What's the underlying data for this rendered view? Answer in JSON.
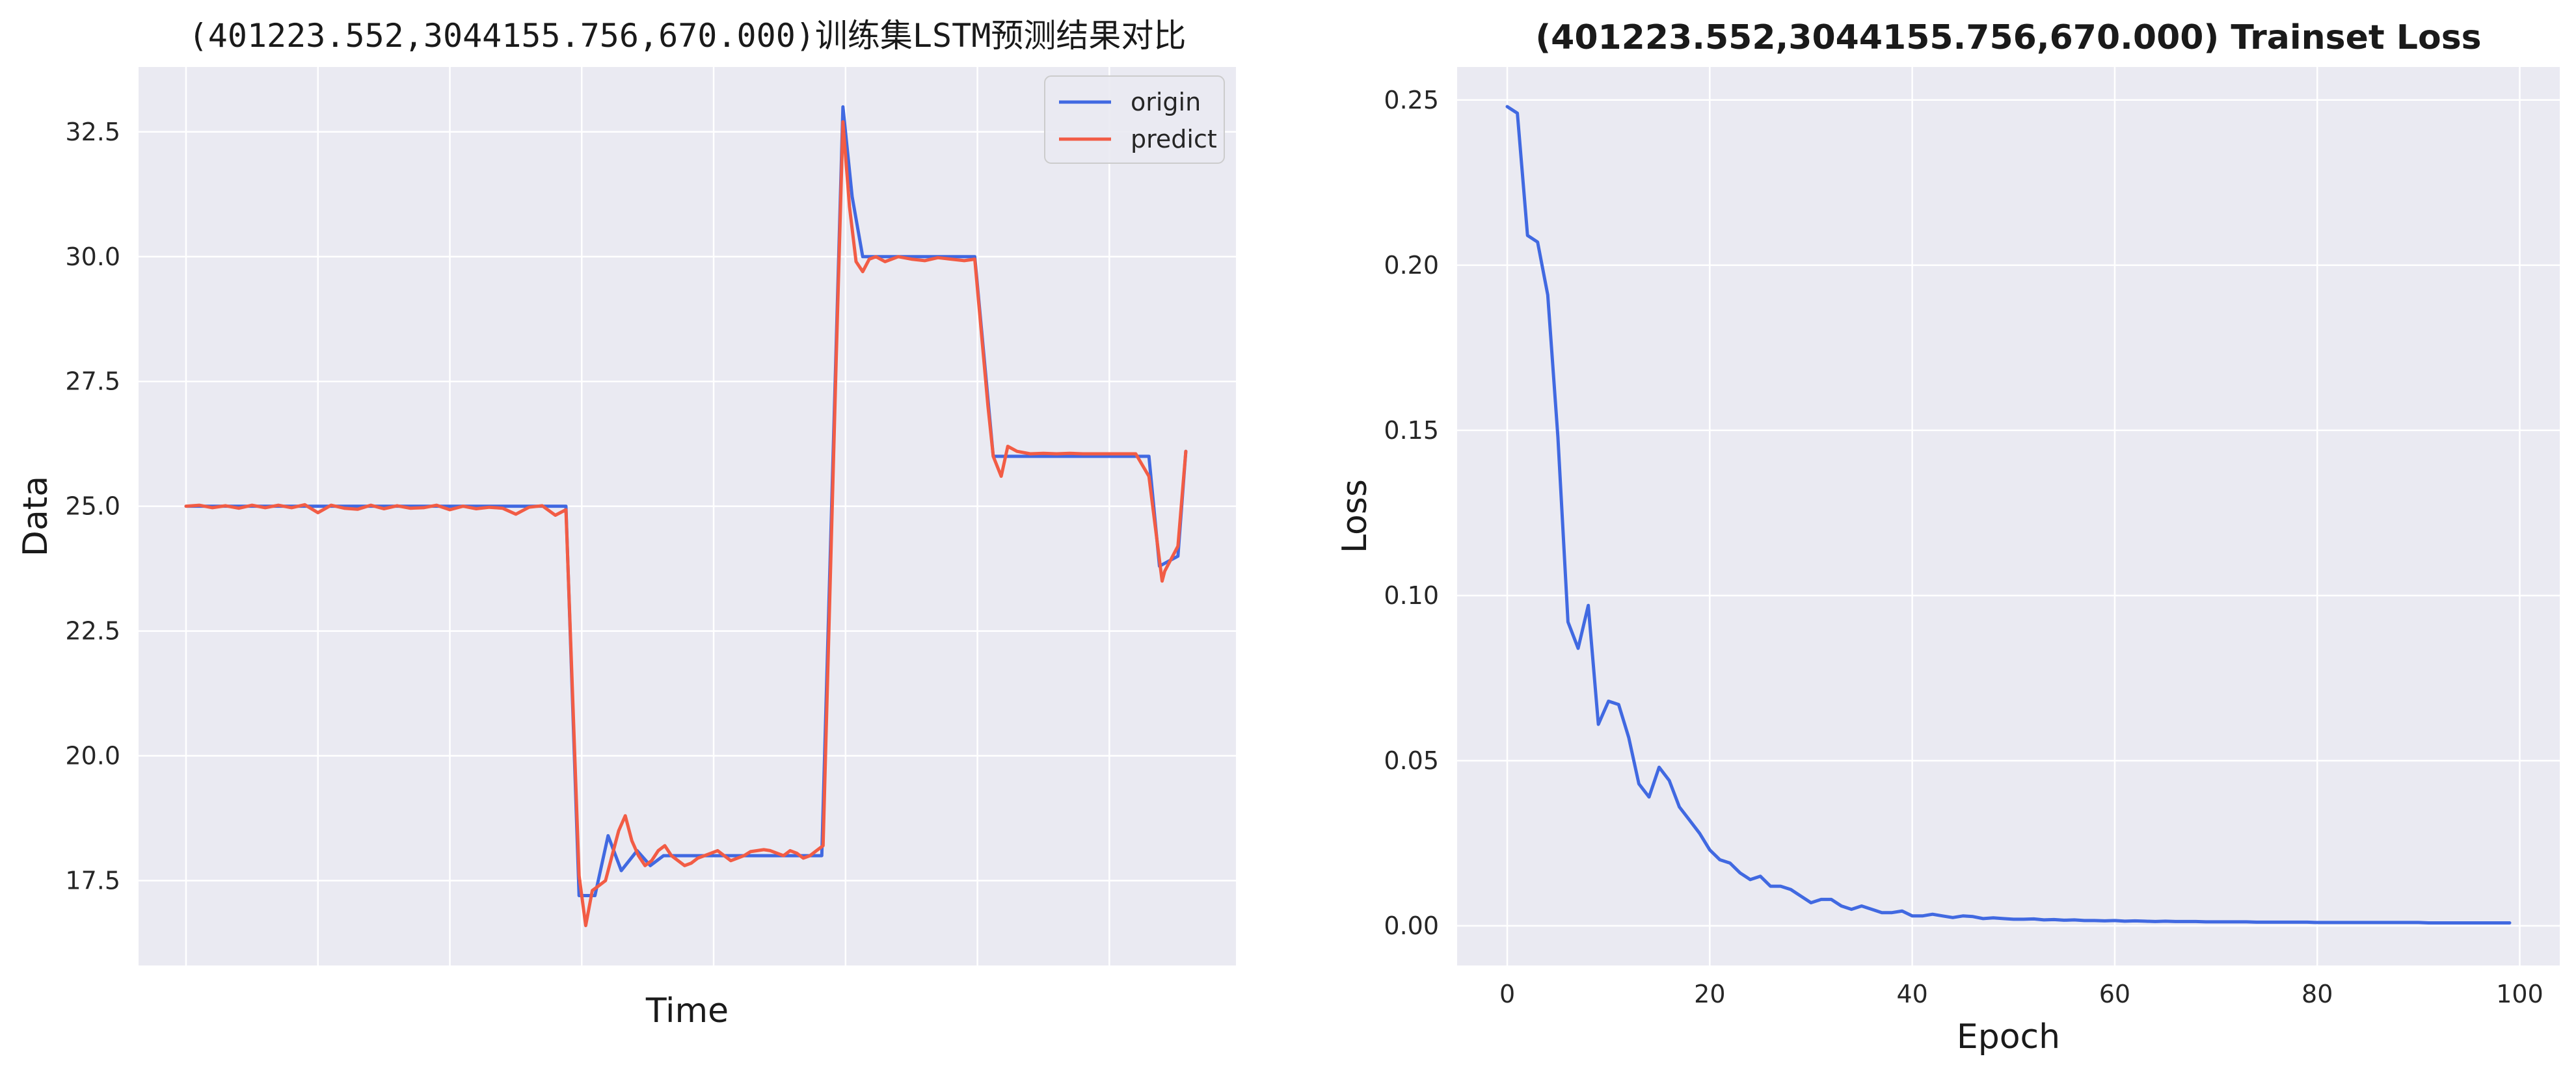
{
  "colors": {
    "origin": "#4169E1",
    "predict": "#F25C45",
    "plot_bg": "#EAEAF2",
    "grid": "#ffffff"
  },
  "chart_data": [
    {
      "type": "line",
      "title": "(401223.552,3044155.756,670.000)训练集LSTM预测结果对比",
      "xlabel": "Time",
      "ylabel": "Data",
      "x_tick_labels_shown": false,
      "xlim": [
        -3.6,
        79.6
      ],
      "ylim": [
        15.8,
        33.8
      ],
      "yticks": [
        17.5,
        20.0,
        22.5,
        25.0,
        27.5,
        30.0,
        32.5
      ],
      "ytick_labels": [
        "17.5",
        "20.0",
        "22.5",
        "25.0",
        "27.5",
        "30.0",
        "32.5"
      ],
      "xgrid": [
        0,
        10,
        20,
        30,
        40,
        50,
        60,
        70
      ],
      "grid": true,
      "legend": "top-right",
      "series": [
        {
          "name": "origin",
          "x": [
            0,
            28.8,
            29.8,
            31.0,
            32.0,
            33.0,
            34.2,
            35.2,
            36.2,
            37.2,
            38.3,
            48.2,
            49.8,
            50.5,
            51.3,
            59.8,
            61.2,
            73.0,
            73.8,
            75.2,
            75.8
          ],
          "y": [
            25.0,
            25.0,
            17.2,
            17.2,
            18.4,
            17.7,
            18.1,
            17.8,
            18.0,
            18.0,
            18.0,
            18.0,
            33.0,
            31.2,
            30.0,
            30.0,
            26.0,
            26.0,
            23.8,
            24.0,
            26.1
          ]
        },
        {
          "name": "predict",
          "x": [
            0,
            1,
            2,
            3,
            4,
            5,
            6,
            7,
            8,
            9,
            10,
            11,
            12,
            13,
            14,
            15,
            16,
            17,
            18,
            19,
            20,
            21,
            22,
            23,
            24,
            25,
            26,
            27,
            28,
            28.8,
            29.8,
            30.3,
            30.8,
            31.3,
            31.8,
            32.3,
            32.8,
            33.3,
            33.8,
            34.3,
            34.8,
            35.3,
            35.8,
            36.3,
            36.8,
            37.3,
            37.8,
            38.3,
            38.8,
            39.3,
            39.8,
            40.3,
            40.8,
            41.3,
            41.8,
            42.3,
            42.8,
            43.3,
            43.8,
            44.3,
            44.8,
            45.3,
            45.8,
            46.3,
            46.8,
            47.3,
            47.8,
            48.3,
            49.3,
            49.8,
            50.3,
            50.8,
            51.3,
            51.8,
            52.3,
            53,
            54,
            55,
            56,
            57,
            58,
            59,
            59.8,
            60.8,
            61.2,
            61.8,
            62.3,
            63,
            64,
            65,
            66,
            67,
            68,
            69,
            70,
            71,
            72,
            73,
            74,
            74.2,
            75.2,
            75.8
          ],
          "y": [
            25.0,
            25.02,
            24.97,
            25.01,
            24.96,
            25.02,
            24.97,
            25.02,
            24.97,
            25.03,
            24.87,
            25.02,
            24.96,
            24.94,
            25.02,
            24.95,
            25.01,
            24.96,
            24.97,
            25.02,
            24.93,
            25.0,
            24.95,
            24.98,
            24.96,
            24.84,
            24.98,
            25.01,
            24.82,
            24.93,
            17.6,
            16.6,
            17.3,
            17.4,
            17.5,
            18.0,
            18.5,
            18.8,
            18.3,
            18.0,
            17.8,
            17.9,
            18.1,
            18.2,
            18.0,
            17.9,
            17.8,
            17.85,
            17.95,
            18.0,
            18.05,
            18.1,
            18.0,
            17.9,
            17.95,
            18.0,
            18.08,
            18.1,
            18.12,
            18.1,
            18.05,
            18.0,
            18.1,
            18.05,
            17.95,
            18.0,
            18.1,
            18.2,
            28.0,
            32.7,
            31.0,
            29.9,
            29.7,
            29.95,
            30.0,
            29.9,
            30.0,
            29.95,
            29.92,
            29.98,
            29.95,
            29.92,
            29.95,
            27.0,
            26.0,
            25.6,
            26.2,
            26.1,
            26.05,
            26.06,
            26.05,
            26.06,
            26.05,
            26.05,
            26.05,
            26.05,
            26.05,
            25.6,
            23.5,
            23.7,
            24.2,
            26.1
          ]
        }
      ]
    },
    {
      "type": "line",
      "title": "(401223.552,3044155.756,670.000) Trainset Loss",
      "xlabel": "Epoch",
      "ylabel": "Loss",
      "xlim": [
        -4.95,
        103.95
      ],
      "ylim": [
        -0.012,
        0.26
      ],
      "xticks": [
        0,
        20,
        40,
        60,
        80,
        100
      ],
      "xtick_labels": [
        "0",
        "20",
        "40",
        "60",
        "80",
        "100"
      ],
      "yticks": [
        0.0,
        0.05,
        0.1,
        0.15,
        0.2,
        0.25
      ],
      "ytick_labels": [
        "0.00",
        "0.05",
        "0.10",
        "0.15",
        "0.20",
        "0.25"
      ],
      "grid": true,
      "series": [
        {
          "x": [
            0,
            1,
            2,
            3,
            4,
            5,
            6,
            7,
            8,
            9,
            10,
            11,
            12,
            13,
            14,
            15,
            16,
            17,
            18,
            19,
            20,
            21,
            22,
            23,
            24,
            25,
            26,
            27,
            28,
            29,
            30,
            31,
            32,
            33,
            34,
            35,
            36,
            37,
            38,
            39,
            40,
            41,
            42,
            43,
            44,
            45,
            46,
            47,
            48,
            49,
            50,
            51,
            52,
            53,
            54,
            55,
            56,
            57,
            58,
            59,
            60,
            61,
            62,
            63,
            64,
            65,
            66,
            67,
            68,
            69,
            70,
            71,
            72,
            73,
            74,
            75,
            76,
            77,
            78,
            79,
            80,
            81,
            82,
            83,
            84,
            85,
            86,
            87,
            88,
            89,
            90,
            91,
            92,
            93,
            94,
            95,
            96,
            97,
            98,
            99
          ],
          "y": [
            0.248,
            0.246,
            0.209,
            0.207,
            0.191,
            0.148,
            0.092,
            0.084,
            0.097,
            0.061,
            0.068,
            0.067,
            0.057,
            0.043,
            0.039,
            0.048,
            0.044,
            0.036,
            0.032,
            0.028,
            0.023,
            0.02,
            0.019,
            0.016,
            0.014,
            0.015,
            0.012,
            0.012,
            0.011,
            0.009,
            0.007,
            0.008,
            0.008,
            0.006,
            0.005,
            0.006,
            0.005,
            0.004,
            0.004,
            0.0045,
            0.003,
            0.003,
            0.0035,
            0.003,
            0.0025,
            0.003,
            0.0028,
            0.0022,
            0.0024,
            0.0022,
            0.002,
            0.002,
            0.0021,
            0.0018,
            0.0019,
            0.0017,
            0.0018,
            0.0016,
            0.0016,
            0.0015,
            0.0016,
            0.0014,
            0.0015,
            0.0014,
            0.0013,
            0.0014,
            0.0013,
            0.0013,
            0.0013,
            0.0012,
            0.0012,
            0.0012,
            0.0012,
            0.0012,
            0.0011,
            0.0011,
            0.0011,
            0.0011,
            0.0011,
            0.0011,
            0.001,
            0.001,
            0.001,
            0.001,
            0.001,
            0.001,
            0.001,
            0.001,
            0.001,
            0.001,
            0.001,
            0.0009,
            0.0009,
            0.0009,
            0.0009,
            0.0009,
            0.0009,
            0.0009,
            0.0009,
            0.0009
          ]
        }
      ]
    }
  ]
}
